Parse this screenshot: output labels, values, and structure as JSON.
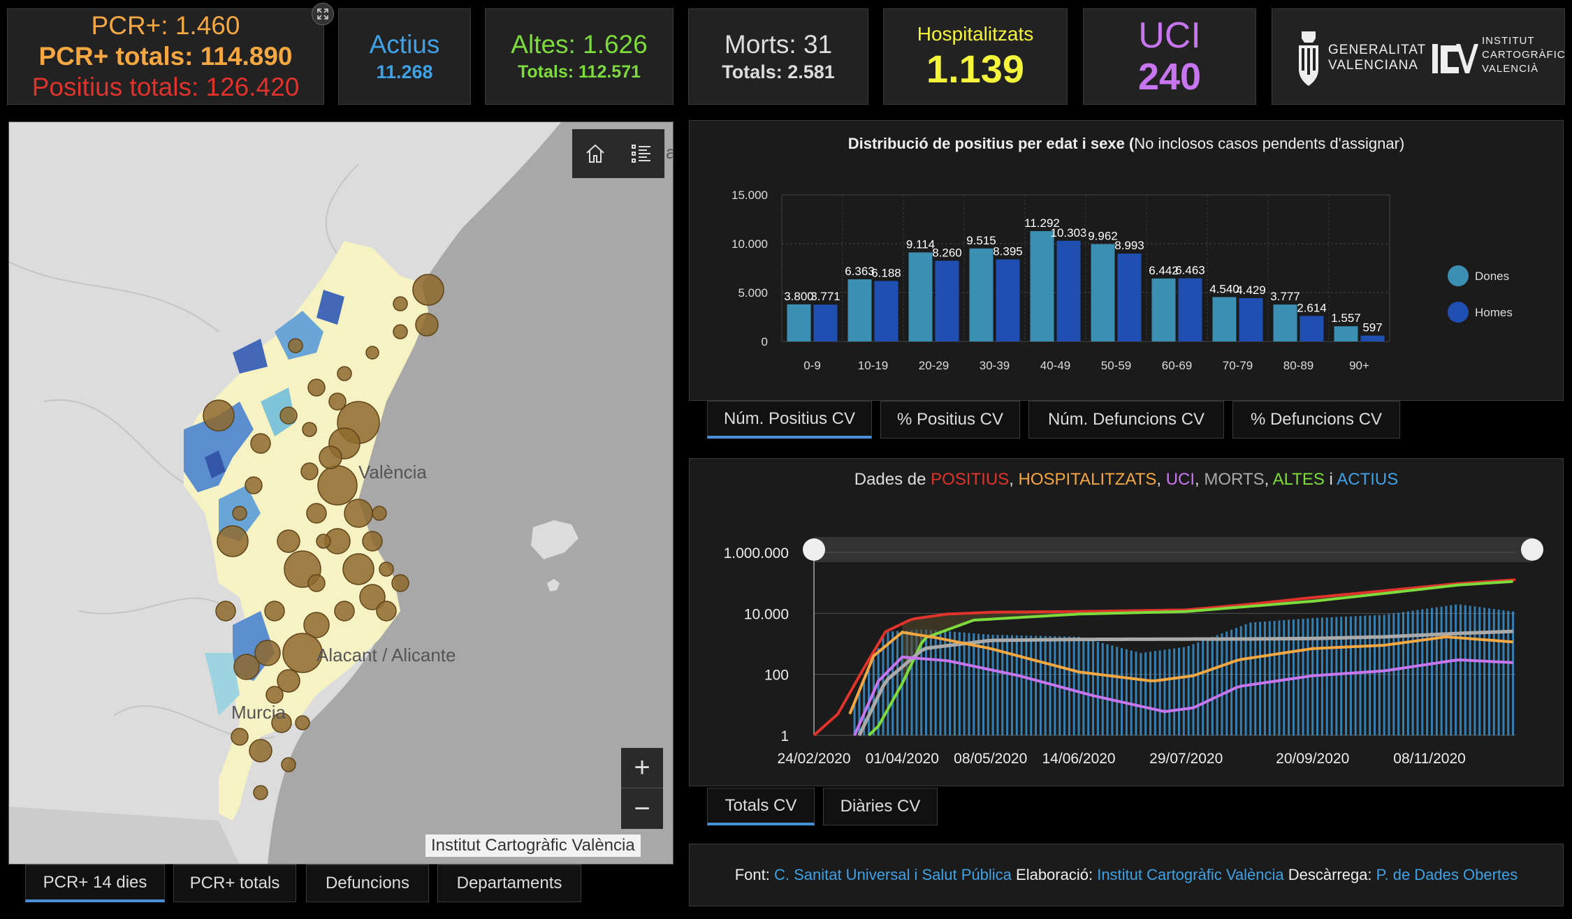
{
  "header": {
    "pcr": {
      "daily": "PCR+: 1.460",
      "totals": "PCR+ totals: 114.890",
      "positius": "Positius totals: 126.420"
    },
    "actius": {
      "label": "Actius",
      "value": "11.268"
    },
    "altes": {
      "label": "Altes: 1.626",
      "totals": "Totals: 112.571"
    },
    "morts": {
      "label": "Morts: 31",
      "totals": "Totals: 2.581"
    },
    "hosp": {
      "label": "Hospitalitzats",
      "value": "1.139"
    },
    "uci": {
      "label": "UCI",
      "value": "240"
    },
    "logos": {
      "gva": "GENERALITAT VALENCIANA",
      "icv": [
        "INSTITUT",
        "CARTOGRÀFIC",
        "VALENCIÀ"
      ]
    }
  },
  "colors": {
    "pcr": "#f5a742",
    "positius": "#e0332c",
    "actius": "#3fa1e6",
    "altes": "#7ddc3c",
    "morts": "#cccccc",
    "hosp": "#f5f53c",
    "uci": "#c876f0",
    "dones": "#3a8fb2",
    "homes": "#1f4fb0"
  },
  "map": {
    "labels": {
      "valencia": "València",
      "alacant": "Alacant / Alicante",
      "murcia": "Murcia",
      "edge": "a"
    },
    "attribution": "Institut Cartogràfic València",
    "zoom_in": "+",
    "zoom_out": "−",
    "tabs": [
      "PCR+ 14 dies",
      "PCR+ totals",
      "Defuncions",
      "Departaments"
    ],
    "active_tab": 0
  },
  "age_chart": {
    "title_bold": "Distribució de positius per edat i sexe (",
    "title_rest": "No inclosos casos pendents d'assignar)",
    "legend": [
      "Dones",
      "Homes"
    ],
    "tabs": [
      "Núm. Positius CV",
      "% Positius CV",
      "Núm. Defuncions CV",
      "% Defuncions CV"
    ],
    "active_tab": 0
  },
  "time_chart": {
    "title_parts": [
      {
        "t": "Dades de ",
        "c": "#dddddd"
      },
      {
        "t": "POSITIUS",
        "c": "#e0332c"
      },
      {
        "t": ", ",
        "c": "#dddddd"
      },
      {
        "t": "HOSPITALITZATS",
        "c": "#f5a742"
      },
      {
        "t": ", ",
        "c": "#dddddd"
      },
      {
        "t": "UCI",
        "c": "#c876f0"
      },
      {
        "t": ", ",
        "c": "#dddddd"
      },
      {
        "t": "MORTS",
        "c": "#aaaaaa"
      },
      {
        "t": ", ",
        "c": "#dddddd"
      },
      {
        "t": "ALTES",
        "c": "#7ddc3c"
      },
      {
        "t": " i ",
        "c": "#dddddd"
      },
      {
        "t": "ACTIUS",
        "c": "#3fa1e6"
      }
    ],
    "tabs": [
      "Totals CV",
      "Diàries CV"
    ],
    "active_tab": 0
  },
  "footer": {
    "font_label": "Font: ",
    "font_link": "C. Sanitat Universal i Salut Pública",
    "elab_label": " Elaboració: ",
    "elab_link": "Institut Cartogràfic València",
    "desc_label": " Descàrrega: ",
    "desc_link": "P. de Dades Obertes"
  },
  "chart_data": [
    {
      "type": "bar",
      "title": "Distribució de positius per edat i sexe (No inclosos casos pendents d'assignar)",
      "categories": [
        "0-9",
        "10-19",
        "20-29",
        "30-39",
        "40-49",
        "50-59",
        "60-69",
        "70-79",
        "80-89",
        "90+"
      ],
      "series": [
        {
          "name": "Dones",
          "values": [
            3800,
            6363,
            9114,
            9515,
            11292,
            9962,
            6442,
            4540,
            3777,
            1557
          ]
        },
        {
          "name": "Homes",
          "values": [
            3771,
            6188,
            8260,
            8395,
            10303,
            8993,
            6463,
            4429,
            2614,
            597
          ]
        }
      ],
      "value_labels": {
        "Dones": [
          "3.800",
          "6.363",
          "9.114",
          "9.515",
          "11.292",
          "9.962",
          "6.442",
          "4.540",
          "3.777",
          "1.557"
        ],
        "Homes": [
          "3.771",
          "6.188",
          "8.260",
          "8.395",
          "10.303",
          "8.993",
          "6.463",
          "4.429",
          "2.614",
          "597"
        ]
      },
      "ylim": [
        0,
        15000
      ],
      "yticks": [
        0,
        5000,
        10000,
        15000
      ],
      "ytick_labels": [
        "0",
        "5.000",
        "10.000",
        "15.000"
      ],
      "legend_position": "right",
      "grid": true
    },
    {
      "type": "line",
      "title": "Dades de POSITIUS, HOSPITALITZATS, UCI, MORTS, ALTES i ACTIUS",
      "yscale": "log",
      "ylim": [
        1,
        1000000
      ],
      "yticks": [
        1,
        100,
        10000,
        1000000
      ],
      "ytick_labels": [
        "1",
        "100",
        "10.000",
        "1.000.000"
      ],
      "xlim": [
        "2020-02-24",
        "2020-12-14"
      ],
      "xticks": [
        "2020-02-24",
        "2020-04-01",
        "2020-05-08",
        "2020-06-14",
        "2020-07-29",
        "2020-09-20",
        "2020-11-08"
      ],
      "xtick_labels": [
        "24/02/2020",
        "01/04/2020",
        "08/05/2020",
        "14/06/2020",
        "29/07/2020",
        "20/09/2020",
        "08/11/2020"
      ],
      "series": [
        {
          "name": "POSITIUS",
          "color": "#e0332c",
          "points": [
            [
              "2020-02-24",
              1
            ],
            [
              "2020-03-05",
              5
            ],
            [
              "2020-03-15",
              120
            ],
            [
              "2020-03-25",
              2500
            ],
            [
              "2020-04-05",
              6500
            ],
            [
              "2020-04-20",
              9500
            ],
            [
              "2020-05-10",
              11000
            ],
            [
              "2020-06-14",
              11500
            ],
            [
              "2020-07-29",
              13000
            ],
            [
              "2020-08-25",
              20000
            ],
            [
              "2020-09-20",
              33000
            ],
            [
              "2020-10-20",
              55000
            ],
            [
              "2020-11-20",
              95000
            ],
            [
              "2020-12-14",
              126420
            ]
          ]
        },
        {
          "name": "ALTES",
          "color": "#7ddc3c",
          "points": [
            [
              "2020-03-18",
              1
            ],
            [
              "2020-03-22",
              2
            ],
            [
              "2020-04-01",
              50
            ],
            [
              "2020-04-10",
              1500
            ],
            [
              "2020-05-01",
              6000
            ],
            [
              "2020-06-14",
              9500
            ],
            [
              "2020-07-29",
              11500
            ],
            [
              "2020-09-20",
              25000
            ],
            [
              "2020-10-20",
              45000
            ],
            [
              "2020-11-20",
              85000
            ],
            [
              "2020-12-14",
              112571
            ]
          ]
        },
        {
          "name": "MORTS",
          "color": "#aaaaaa",
          "points": [
            [
              "2020-03-14",
              1
            ],
            [
              "2020-03-25",
              60
            ],
            [
              "2020-04-10",
              700
            ],
            [
              "2020-05-08",
              1300
            ],
            [
              "2020-06-14",
              1400
            ],
            [
              "2020-08-25",
              1450
            ],
            [
              "2020-09-20",
              1500
            ],
            [
              "2020-10-20",
              1700
            ],
            [
              "2020-11-20",
              2200
            ],
            [
              "2020-12-14",
              2581
            ]
          ]
        },
        {
          "name": "HOSPITALITZATS",
          "color": "#f5a742",
          "points": [
            [
              "2020-03-10",
              5
            ],
            [
              "2020-03-20",
              400
            ],
            [
              "2020-04-01",
              2400
            ],
            [
              "2020-04-15",
              1600
            ],
            [
              "2020-05-08",
              700
            ],
            [
              "2020-06-14",
              120
            ],
            [
              "2020-07-15",
              60
            ],
            [
              "2020-08-01",
              90
            ],
            [
              "2020-08-20",
              300
            ],
            [
              "2020-09-20",
              700
            ],
            [
              "2020-10-20",
              900
            ],
            [
              "2020-11-15",
              1700
            ],
            [
              "2020-12-14",
              1139
            ]
          ]
        },
        {
          "name": "UCI",
          "color": "#c876f0",
          "points": [
            [
              "2020-03-12",
              1
            ],
            [
              "2020-03-22",
              60
            ],
            [
              "2020-04-01",
              370
            ],
            [
              "2020-04-20",
              280
            ],
            [
              "2020-05-20",
              90
            ],
            [
              "2020-06-20",
              20
            ],
            [
              "2020-07-20",
              6
            ],
            [
              "2020-08-01",
              8
            ],
            [
              "2020-08-20",
              40
            ],
            [
              "2020-09-20",
              90
            ],
            [
              "2020-10-20",
              130
            ],
            [
              "2020-11-20",
              300
            ],
            [
              "2020-12-14",
              240
            ]
          ]
        },
        {
          "name": "ACTIUS",
          "color": "#3fa1e6",
          "points": [
            [
              "2020-03-10",
              5
            ],
            [
              "2020-03-25",
              2500
            ],
            [
              "2020-04-10",
              3000
            ],
            [
              "2020-05-08",
              2000
            ],
            [
              "2020-06-14",
              1700
            ],
            [
              "2020-07-10",
              500
            ],
            [
              "2020-07-29",
              800
            ],
            [
              "2020-08-25",
              5000
            ],
            [
              "2020-09-20",
              7000
            ],
            [
              "2020-10-20",
              9000
            ],
            [
              "2020-11-20",
              20000
            ],
            [
              "2020-12-14",
              11268
            ]
          ]
        }
      ],
      "legend_position": "top"
    }
  ]
}
